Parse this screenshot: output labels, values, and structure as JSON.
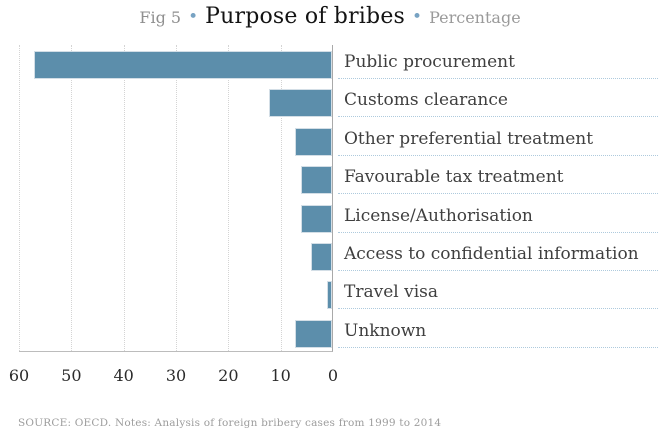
{
  "title": {
    "fig": "Fig 5",
    "separator": "•",
    "main": "Purpose of bribes",
    "unit": "Percentage"
  },
  "chart_data": {
    "type": "bar",
    "orientation": "horizontal",
    "title": "Purpose of bribes",
    "unit": "Percentage",
    "categories": [
      "Public procurement",
      "Customs clearance",
      "Other preferential treatment",
      "Favourable tax treatment",
      "License/Authorisation",
      "Access to confidential information",
      "Travel visa",
      "Unknown"
    ],
    "values": [
      57,
      12,
      7,
      6,
      6,
      4,
      1,
      7
    ],
    "x_ticks": [
      60,
      50,
      40,
      30,
      20,
      10,
      0
    ],
    "xlim": [
      60,
      0
    ],
    "axis_reversed": true,
    "grid": "vertical-dotted",
    "legend": "none",
    "bar_color": "#5C8EAB"
  },
  "footer": {
    "source": "SOURCE: OECD. Notes: Analysis of foreign bribery cases from 1999 to 2014"
  },
  "colors": {
    "bar": "#5C8EAB",
    "bullet": "#78a3c3",
    "label_line": "#aecadd",
    "gridline": "#d4d4d4"
  }
}
